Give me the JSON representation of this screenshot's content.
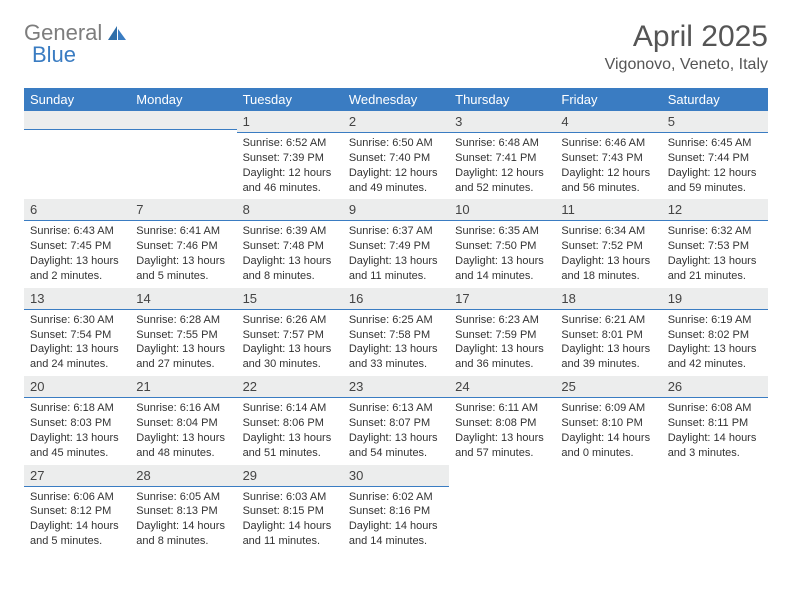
{
  "logo": {
    "part1": "General",
    "part2": "Blue"
  },
  "title": "April 2025",
  "location": "Vigonovo, Veneto, Italy",
  "day_headers": [
    "Sunday",
    "Monday",
    "Tuesday",
    "Wednesday",
    "Thursday",
    "Friday",
    "Saturday"
  ],
  "colors": {
    "header_bg": "#3a7cc2",
    "header_text": "#ffffff",
    "daynum_bg": "#eceded",
    "daynum_border": "#3a7cc2",
    "body_text": "#333333",
    "title_text": "#555555",
    "logo_gray": "#7d7d7d",
    "logo_blue": "#3a7cc2"
  },
  "weeks": [
    [
      null,
      null,
      {
        "n": "1",
        "sr": "Sunrise: 6:52 AM",
        "ss": "Sunset: 7:39 PM",
        "d1": "Daylight: 12 hours",
        "d2": "and 46 minutes."
      },
      {
        "n": "2",
        "sr": "Sunrise: 6:50 AM",
        "ss": "Sunset: 7:40 PM",
        "d1": "Daylight: 12 hours",
        "d2": "and 49 minutes."
      },
      {
        "n": "3",
        "sr": "Sunrise: 6:48 AM",
        "ss": "Sunset: 7:41 PM",
        "d1": "Daylight: 12 hours",
        "d2": "and 52 minutes."
      },
      {
        "n": "4",
        "sr": "Sunrise: 6:46 AM",
        "ss": "Sunset: 7:43 PM",
        "d1": "Daylight: 12 hours",
        "d2": "and 56 minutes."
      },
      {
        "n": "5",
        "sr": "Sunrise: 6:45 AM",
        "ss": "Sunset: 7:44 PM",
        "d1": "Daylight: 12 hours",
        "d2": "and 59 minutes."
      }
    ],
    [
      {
        "n": "6",
        "sr": "Sunrise: 6:43 AM",
        "ss": "Sunset: 7:45 PM",
        "d1": "Daylight: 13 hours",
        "d2": "and 2 minutes."
      },
      {
        "n": "7",
        "sr": "Sunrise: 6:41 AM",
        "ss": "Sunset: 7:46 PM",
        "d1": "Daylight: 13 hours",
        "d2": "and 5 minutes."
      },
      {
        "n": "8",
        "sr": "Sunrise: 6:39 AM",
        "ss": "Sunset: 7:48 PM",
        "d1": "Daylight: 13 hours",
        "d2": "and 8 minutes."
      },
      {
        "n": "9",
        "sr": "Sunrise: 6:37 AM",
        "ss": "Sunset: 7:49 PM",
        "d1": "Daylight: 13 hours",
        "d2": "and 11 minutes."
      },
      {
        "n": "10",
        "sr": "Sunrise: 6:35 AM",
        "ss": "Sunset: 7:50 PM",
        "d1": "Daylight: 13 hours",
        "d2": "and 14 minutes."
      },
      {
        "n": "11",
        "sr": "Sunrise: 6:34 AM",
        "ss": "Sunset: 7:52 PM",
        "d1": "Daylight: 13 hours",
        "d2": "and 18 minutes."
      },
      {
        "n": "12",
        "sr": "Sunrise: 6:32 AM",
        "ss": "Sunset: 7:53 PM",
        "d1": "Daylight: 13 hours",
        "d2": "and 21 minutes."
      }
    ],
    [
      {
        "n": "13",
        "sr": "Sunrise: 6:30 AM",
        "ss": "Sunset: 7:54 PM",
        "d1": "Daylight: 13 hours",
        "d2": "and 24 minutes."
      },
      {
        "n": "14",
        "sr": "Sunrise: 6:28 AM",
        "ss": "Sunset: 7:55 PM",
        "d1": "Daylight: 13 hours",
        "d2": "and 27 minutes."
      },
      {
        "n": "15",
        "sr": "Sunrise: 6:26 AM",
        "ss": "Sunset: 7:57 PM",
        "d1": "Daylight: 13 hours",
        "d2": "and 30 minutes."
      },
      {
        "n": "16",
        "sr": "Sunrise: 6:25 AM",
        "ss": "Sunset: 7:58 PM",
        "d1": "Daylight: 13 hours",
        "d2": "and 33 minutes."
      },
      {
        "n": "17",
        "sr": "Sunrise: 6:23 AM",
        "ss": "Sunset: 7:59 PM",
        "d1": "Daylight: 13 hours",
        "d2": "and 36 minutes."
      },
      {
        "n": "18",
        "sr": "Sunrise: 6:21 AM",
        "ss": "Sunset: 8:01 PM",
        "d1": "Daylight: 13 hours",
        "d2": "and 39 minutes."
      },
      {
        "n": "19",
        "sr": "Sunrise: 6:19 AM",
        "ss": "Sunset: 8:02 PM",
        "d1": "Daylight: 13 hours",
        "d2": "and 42 minutes."
      }
    ],
    [
      {
        "n": "20",
        "sr": "Sunrise: 6:18 AM",
        "ss": "Sunset: 8:03 PM",
        "d1": "Daylight: 13 hours",
        "d2": "and 45 minutes."
      },
      {
        "n": "21",
        "sr": "Sunrise: 6:16 AM",
        "ss": "Sunset: 8:04 PM",
        "d1": "Daylight: 13 hours",
        "d2": "and 48 minutes."
      },
      {
        "n": "22",
        "sr": "Sunrise: 6:14 AM",
        "ss": "Sunset: 8:06 PM",
        "d1": "Daylight: 13 hours",
        "d2": "and 51 minutes."
      },
      {
        "n": "23",
        "sr": "Sunrise: 6:13 AM",
        "ss": "Sunset: 8:07 PM",
        "d1": "Daylight: 13 hours",
        "d2": "and 54 minutes."
      },
      {
        "n": "24",
        "sr": "Sunrise: 6:11 AM",
        "ss": "Sunset: 8:08 PM",
        "d1": "Daylight: 13 hours",
        "d2": "and 57 minutes."
      },
      {
        "n": "25",
        "sr": "Sunrise: 6:09 AM",
        "ss": "Sunset: 8:10 PM",
        "d1": "Daylight: 14 hours",
        "d2": "and 0 minutes."
      },
      {
        "n": "26",
        "sr": "Sunrise: 6:08 AM",
        "ss": "Sunset: 8:11 PM",
        "d1": "Daylight: 14 hours",
        "d2": "and 3 minutes."
      }
    ],
    [
      {
        "n": "27",
        "sr": "Sunrise: 6:06 AM",
        "ss": "Sunset: 8:12 PM",
        "d1": "Daylight: 14 hours",
        "d2": "and 5 minutes."
      },
      {
        "n": "28",
        "sr": "Sunrise: 6:05 AM",
        "ss": "Sunset: 8:13 PM",
        "d1": "Daylight: 14 hours",
        "d2": "and 8 minutes."
      },
      {
        "n": "29",
        "sr": "Sunrise: 6:03 AM",
        "ss": "Sunset: 8:15 PM",
        "d1": "Daylight: 14 hours",
        "d2": "and 11 minutes."
      },
      {
        "n": "30",
        "sr": "Sunrise: 6:02 AM",
        "ss": "Sunset: 8:16 PM",
        "d1": "Daylight: 14 hours",
        "d2": "and 14 minutes."
      },
      null,
      null,
      null
    ]
  ]
}
